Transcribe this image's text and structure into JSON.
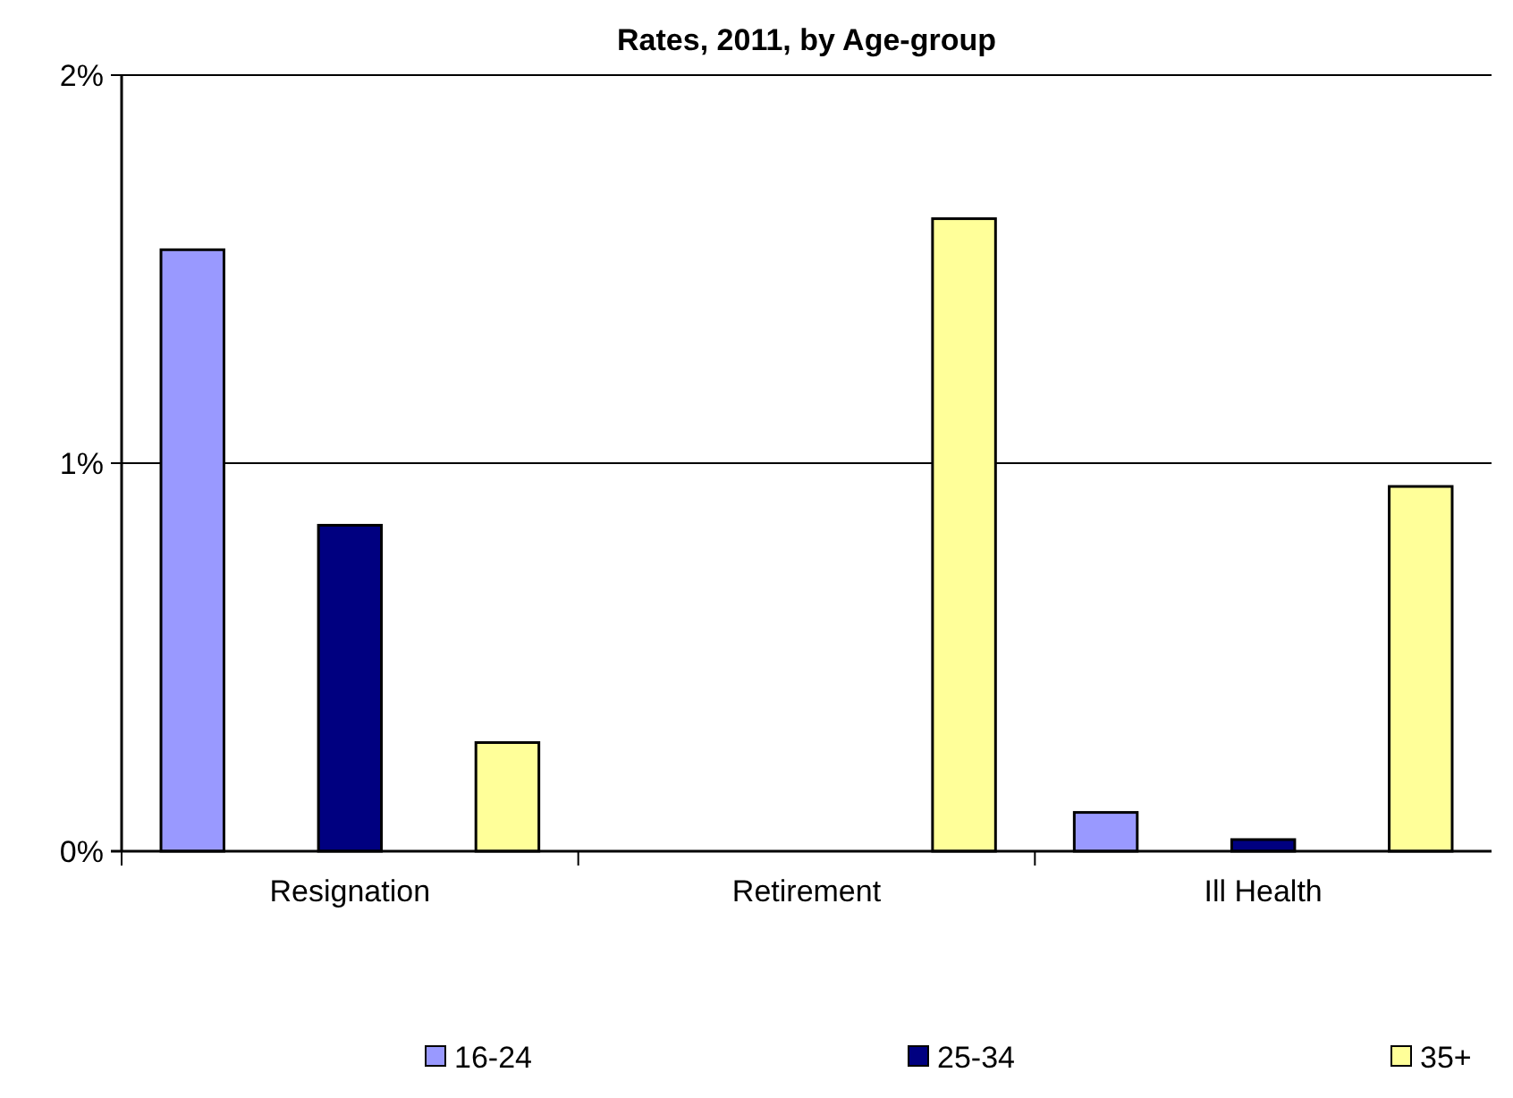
{
  "chart_data": {
    "type": "bar",
    "title": "Rates, 2011, by Age-group",
    "categories": [
      "Resignation",
      "Retirement",
      "Ill Health"
    ],
    "series": [
      {
        "name": "16-24",
        "color": "#9999ff",
        "values": [
          1.55,
          0,
          0.1
        ]
      },
      {
        "name": "25-34",
        "color": "#000080",
        "values": [
          0.84,
          0,
          0.03
        ]
      },
      {
        "name": "35+",
        "color": "#ffff99",
        "values": [
          0.28,
          1.63,
          0.94
        ]
      }
    ],
    "ylim": [
      0,
      2
    ],
    "yticks": [
      {
        "value": 0,
        "label": "0%"
      },
      {
        "value": 1,
        "label": "1%"
      },
      {
        "value": 2,
        "label": "2%"
      }
    ],
    "grid": "y",
    "legend": "bottom"
  }
}
